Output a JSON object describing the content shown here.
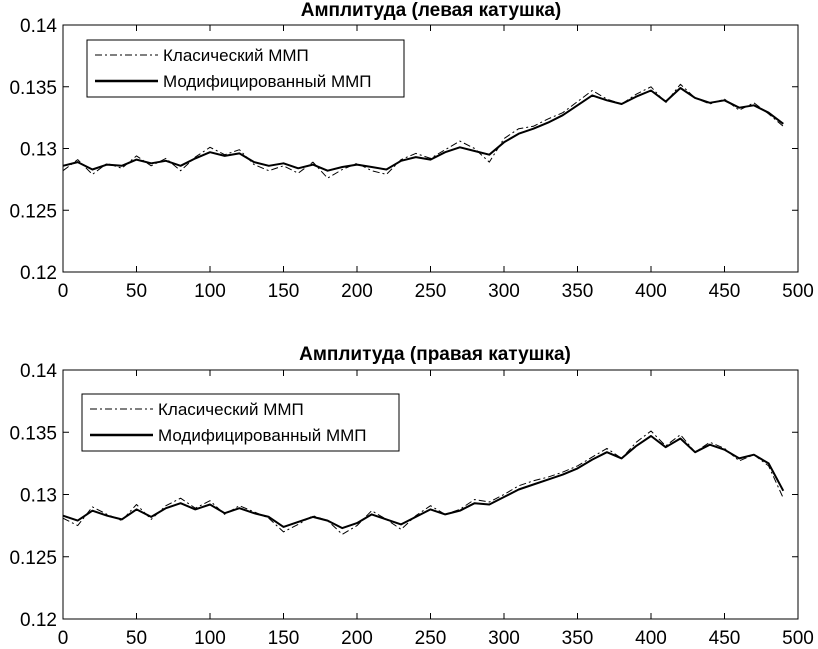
{
  "chart_data": [
    {
      "type": "line",
      "title": "Амплитуда (левая катушка)",
      "xlabel": "",
      "ylabel": "",
      "xlim": [
        0,
        500
      ],
      "ylim": [
        0.12,
        0.14
      ],
      "xticks": [
        0,
        50,
        100,
        150,
        200,
        250,
        300,
        350,
        400,
        450,
        500
      ],
      "xtick_labels": [
        "0",
        "50",
        "100",
        "150",
        "200",
        "250",
        "300",
        "350",
        "400",
        "450",
        "500"
      ],
      "yticks": [
        0.12,
        0.125,
        0.13,
        0.135,
        0.14
      ],
      "ytick_labels": [
        "0.12",
        "0.125",
        "0.13",
        "0.135",
        "0.14"
      ],
      "legend_position": "top-left",
      "series": [
        {
          "name": "Класический ММП",
          "style": "dash-dot",
          "color": "#000000",
          "x": [
            0,
            10,
            20,
            30,
            40,
            50,
            60,
            70,
            80,
            90,
            100,
            110,
            120,
            130,
            140,
            150,
            160,
            170,
            180,
            190,
            200,
            210,
            220,
            230,
            240,
            250,
            260,
            270,
            280,
            290,
            300,
            310,
            320,
            330,
            340,
            350,
            360,
            370,
            380,
            390,
            400,
            410,
            420,
            430,
            440,
            450,
            460,
            470,
            480,
            490
          ],
          "values": [
            0.1282,
            0.1291,
            0.1279,
            0.1288,
            0.1284,
            0.1294,
            0.1286,
            0.1292,
            0.1282,
            0.1293,
            0.1301,
            0.1295,
            0.1299,
            0.1287,
            0.1282,
            0.1286,
            0.128,
            0.1289,
            0.1276,
            0.1283,
            0.1288,
            0.1282,
            0.1279,
            0.1291,
            0.1296,
            0.1292,
            0.1299,
            0.1306,
            0.13,
            0.1289,
            0.1308,
            0.1316,
            0.1318,
            0.1324,
            0.1329,
            0.1338,
            0.1347,
            0.134,
            0.1336,
            0.1344,
            0.135,
            0.1337,
            0.1352,
            0.1341,
            0.1336,
            0.134,
            0.1331,
            0.1337,
            0.1328,
            0.1318
          ]
        },
        {
          "name": "Модифицированный ММП",
          "style": "solid",
          "color": "#000000",
          "x": [
            0,
            10,
            20,
            30,
            40,
            50,
            60,
            70,
            80,
            90,
            100,
            110,
            120,
            130,
            140,
            150,
            160,
            170,
            180,
            190,
            200,
            210,
            220,
            230,
            240,
            250,
            260,
            270,
            280,
            290,
            300,
            310,
            320,
            330,
            340,
            350,
            360,
            370,
            380,
            390,
            400,
            410,
            420,
            430,
            440,
            450,
            460,
            470,
            480,
            490
          ],
          "values": [
            0.1286,
            0.1289,
            0.1283,
            0.1287,
            0.1286,
            0.1291,
            0.1288,
            0.129,
            0.1286,
            0.1292,
            0.1297,
            0.1294,
            0.1296,
            0.1289,
            0.1286,
            0.1288,
            0.1284,
            0.1287,
            0.1282,
            0.1285,
            0.1287,
            0.1285,
            0.1283,
            0.129,
            0.1293,
            0.1291,
            0.1297,
            0.1301,
            0.1298,
            0.1295,
            0.1305,
            0.1312,
            0.1316,
            0.1321,
            0.1327,
            0.1335,
            0.1343,
            0.1339,
            0.1336,
            0.1342,
            0.1347,
            0.1338,
            0.1349,
            0.1341,
            0.1337,
            0.1339,
            0.1333,
            0.1335,
            0.1329,
            0.132
          ]
        }
      ]
    },
    {
      "type": "line",
      "title": "Амплитуда (правая катушка)",
      "xlabel": "",
      "ylabel": "",
      "xlim": [
        0,
        500
      ],
      "ylim": [
        0.12,
        0.14
      ],
      "xticks": [
        0,
        50,
        100,
        150,
        200,
        250,
        300,
        350,
        400,
        450,
        500
      ],
      "xtick_labels": [
        "0",
        "50",
        "100",
        "150",
        "200",
        "250",
        "300",
        "350",
        "400",
        "450",
        "500"
      ],
      "yticks": [
        0.12,
        0.125,
        0.13,
        0.135,
        0.14
      ],
      "ytick_labels": [
        "0.12",
        "0.125",
        "0.13",
        "0.135",
        "0.14"
      ],
      "legend_position": "top-left",
      "series": [
        {
          "name": "Класический ММП",
          "style": "dash-dot",
          "color": "#000000",
          "x": [
            0,
            10,
            20,
            30,
            40,
            50,
            60,
            70,
            80,
            90,
            100,
            110,
            120,
            130,
            140,
            150,
            160,
            170,
            180,
            190,
            200,
            210,
            220,
            230,
            240,
            250,
            260,
            270,
            280,
            290,
            300,
            310,
            320,
            330,
            340,
            350,
            360,
            370,
            380,
            390,
            400,
            410,
            420,
            430,
            440,
            450,
            460,
            470,
            480,
            490
          ],
          "values": [
            0.1281,
            0.1275,
            0.129,
            0.1284,
            0.1279,
            0.1292,
            0.128,
            0.1291,
            0.1297,
            0.1289,
            0.1295,
            0.1284,
            0.1291,
            0.1286,
            0.1281,
            0.127,
            0.1276,
            0.1283,
            0.1279,
            0.1268,
            0.1275,
            0.1287,
            0.128,
            0.1272,
            0.1283,
            0.1291,
            0.1284,
            0.1288,
            0.1296,
            0.1294,
            0.13,
            0.1307,
            0.1311,
            0.1314,
            0.1318,
            0.1323,
            0.133,
            0.1337,
            0.1329,
            0.1342,
            0.1351,
            0.1339,
            0.1348,
            0.1334,
            0.1342,
            0.1337,
            0.1327,
            0.1332,
            0.1323,
            0.1297
          ]
        },
        {
          "name": "Модифицированный ММП",
          "style": "solid",
          "color": "#000000",
          "x": [
            0,
            10,
            20,
            30,
            40,
            50,
            60,
            70,
            80,
            90,
            100,
            110,
            120,
            130,
            140,
            150,
            160,
            170,
            180,
            190,
            200,
            210,
            220,
            230,
            240,
            250,
            260,
            270,
            280,
            290,
            300,
            310,
            320,
            330,
            340,
            350,
            360,
            370,
            380,
            390,
            400,
            410,
            420,
            430,
            440,
            450,
            460,
            470,
            480,
            490
          ],
          "values": [
            0.1283,
            0.1279,
            0.1287,
            0.1283,
            0.128,
            0.1288,
            0.1282,
            0.1289,
            0.1293,
            0.1288,
            0.1292,
            0.1285,
            0.1289,
            0.1285,
            0.1282,
            0.1274,
            0.1278,
            0.1282,
            0.1279,
            0.1273,
            0.1277,
            0.1284,
            0.128,
            0.1276,
            0.1282,
            0.1288,
            0.1284,
            0.1287,
            0.1293,
            0.1292,
            0.1298,
            0.1304,
            0.1308,
            0.1312,
            0.1316,
            0.1321,
            0.1328,
            0.1334,
            0.1329,
            0.1339,
            0.1347,
            0.1338,
            0.1345,
            0.1334,
            0.134,
            0.1336,
            0.1329,
            0.1332,
            0.1325,
            0.1303
          ]
        }
      ]
    }
  ]
}
